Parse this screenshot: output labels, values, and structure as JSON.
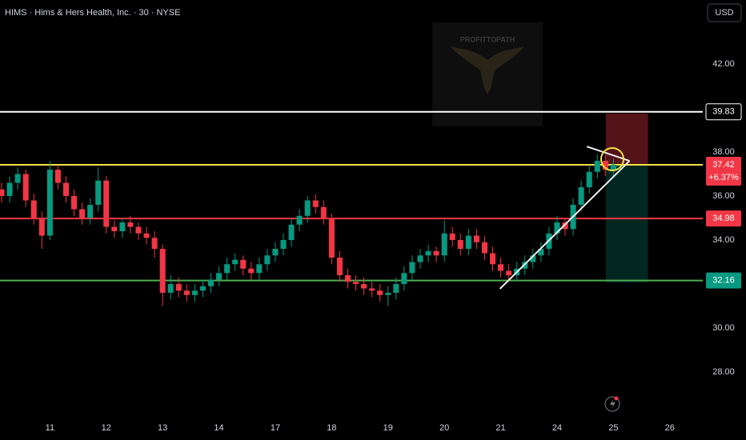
{
  "chart_data": {
    "type": "candlestick",
    "title": "HIMS · Hims & Hers Health, Inc. · 30 · NYSE",
    "currency": "USD",
    "watermark": "PROFITTOPATH",
    "up_color": "#089981",
    "down_color": "#f23645",
    "xlim": [
      -0.2,
      87.1
    ],
    "ylim": [
      25.82,
      44.91
    ],
    "xticks": [
      {
        "value": 6,
        "label": "11"
      },
      {
        "value": 13,
        "label": "12"
      },
      {
        "value": 20,
        "label": "13"
      },
      {
        "value": 27,
        "label": "14"
      },
      {
        "value": 34,
        "label": "17"
      },
      {
        "value": 41,
        "label": "18"
      },
      {
        "value": 48,
        "label": "19"
      },
      {
        "value": 55,
        "label": "20"
      },
      {
        "value": 62,
        "label": "21"
      },
      {
        "value": 69,
        "label": "24"
      },
      {
        "value": 76,
        "label": "25"
      },
      {
        "value": 83,
        "label": "26"
      }
    ],
    "yticks": [
      {
        "value": 42,
        "label": "42.00"
      },
      {
        "value": 38,
        "label": "38.00"
      },
      {
        "value": 36,
        "label": "36.00"
      },
      {
        "value": 34,
        "label": "34.00"
      },
      {
        "value": 30,
        "label": "30.00"
      },
      {
        "value": 28,
        "label": "28.00"
      }
    ],
    "x": [
      0,
      1,
      2,
      3,
      4,
      5,
      6,
      7,
      8,
      9,
      10,
      11,
      12,
      13,
      14,
      15,
      16,
      17,
      18,
      19,
      20,
      21,
      22,
      23,
      24,
      25,
      26,
      27,
      28,
      29,
      30,
      31,
      32,
      33,
      34,
      35,
      36,
      37,
      38,
      39,
      40,
      41,
      42,
      43,
      44,
      45,
      46,
      47,
      48,
      49,
      50,
      51,
      52,
      53,
      54,
      55,
      56,
      57,
      58,
      59,
      60,
      61,
      62,
      63,
      64,
      65,
      66,
      67,
      68,
      69,
      70,
      71,
      72,
      73,
      74,
      75,
      76
    ],
    "open": [
      36.3,
      36.0,
      36.6,
      37.0,
      35.8,
      35.0,
      34.2,
      37.2,
      36.6,
      36.0,
      35.4,
      35.0,
      35.6,
      36.7,
      34.6,
      34.4,
      34.8,
      34.6,
      34.3,
      34.1,
      33.6,
      31.6,
      32.0,
      31.7,
      31.5,
      31.7,
      31.9,
      32.2,
      32.5,
      32.9,
      33.1,
      32.7,
      32.5,
      32.9,
      33.3,
      33.6,
      34.0,
      34.7,
      35.1,
      35.8,
      35.5,
      35.0,
      33.2,
      32.4,
      32.1,
      32.0,
      31.8,
      31.7,
      31.5,
      31.6,
      32.0,
      32.5,
      33.0,
      33.3,
      33.5,
      33.3,
      34.3,
      34.0,
      33.6,
      34.2,
      33.9,
      33.4,
      32.9,
      32.6,
      32.4,
      32.7,
      33.0,
      33.3,
      33.6,
      34.3,
      34.8,
      34.5,
      35.6,
      36.4,
      37.1,
      37.6,
      37.2
    ],
    "high": [
      36.6,
      36.9,
      37.3,
      37.2,
      36.1,
      35.3,
      37.6,
      37.4,
      36.9,
      36.3,
      35.7,
      35.9,
      37.3,
      36.9,
      34.9,
      35.0,
      35.1,
      34.8,
      34.6,
      34.4,
      33.8,
      32.4,
      32.3,
      32.0,
      32.0,
      32.2,
      32.5,
      32.8,
      33.2,
      33.4,
      33.3,
      33.0,
      33.2,
      33.6,
      33.9,
      34.3,
      35.0,
      35.4,
      36.0,
      36.1,
      35.8,
      35.2,
      33.5,
      32.7,
      32.4,
      32.3,
      32.1,
      32.0,
      31.9,
      32.3,
      32.8,
      33.3,
      33.6,
      33.8,
      33.7,
      34.9,
      34.6,
      34.3,
      34.5,
      34.5,
      34.2,
      33.7,
      33.2,
      32.9,
      33.0,
      33.3,
      33.6,
      33.9,
      34.6,
      35.1,
      35.0,
      35.9,
      36.7,
      37.4,
      37.9,
      37.9,
      37.7
    ],
    "low": [
      35.7,
      35.7,
      36.3,
      35.5,
      34.7,
      33.6,
      34.0,
      36.3,
      35.7,
      35.1,
      34.7,
      34.7,
      35.3,
      34.3,
      34.1,
      34.1,
      34.3,
      34.0,
      33.8,
      33.2,
      31.0,
      31.3,
      31.4,
      31.2,
      31.2,
      31.4,
      31.6,
      31.9,
      32.2,
      32.6,
      32.4,
      32.2,
      32.2,
      32.6,
      33.0,
      33.3,
      33.7,
      34.4,
      34.8,
      35.2,
      34.7,
      32.9,
      32.1,
      31.8,
      31.7,
      31.5,
      31.4,
      31.2,
      31.0,
      31.3,
      31.7,
      32.2,
      32.7,
      33.0,
      33.0,
      33.0,
      33.7,
      33.3,
      33.3,
      33.6,
      33.1,
      32.6,
      32.3,
      32.1,
      32.1,
      32.4,
      32.7,
      33.0,
      33.3,
      34.0,
      34.2,
      34.2,
      35.3,
      36.1,
      36.8,
      36.9,
      36.9
    ],
    "close": [
      36.0,
      36.6,
      37.0,
      35.8,
      35.0,
      34.2,
      37.2,
      36.6,
      36.0,
      35.4,
      35.0,
      35.6,
      36.7,
      34.6,
      34.4,
      34.8,
      34.6,
      34.3,
      34.1,
      33.6,
      31.6,
      32.0,
      31.7,
      31.5,
      31.7,
      31.9,
      32.2,
      32.5,
      32.9,
      33.1,
      32.7,
      32.5,
      32.9,
      33.3,
      33.6,
      34.0,
      34.7,
      35.1,
      35.8,
      35.5,
      35.0,
      33.2,
      32.4,
      32.1,
      32.0,
      31.8,
      31.7,
      31.5,
      31.6,
      32.0,
      32.5,
      33.0,
      33.3,
      33.5,
      33.3,
      34.3,
      34.0,
      33.6,
      34.2,
      33.9,
      33.4,
      32.9,
      32.6,
      32.4,
      32.7,
      33.0,
      33.3,
      33.6,
      34.3,
      34.8,
      34.5,
      35.6,
      36.4,
      37.1,
      37.6,
      37.2,
      37.42
    ],
    "levels": [
      {
        "value": 39.83,
        "color": "#ffffff",
        "label_color": "#ffffff"
      },
      {
        "value": 37.42,
        "color": "#f5e342",
        "label_color": "#f23645"
      },
      {
        "value": 34.98,
        "color": "#f23645",
        "label_color": "#f23645"
      },
      {
        "value": 32.16,
        "color": "#4caf50",
        "label_color": "#089981"
      }
    ],
    "change_label": "+6.37%",
    "trendlines": [
      {
        "x": [
          61.9,
          78.0
        ],
        "y": [
          31.78,
          37.6
        ]
      },
      {
        "x": [
          72.7,
          78.0
        ],
        "y": [
          38.25,
          37.6
        ]
      }
    ],
    "position": {
      "x": [
        75.05,
        80.3
      ],
      "entry": 37.42,
      "stop": 39.75,
      "target": 32.07
    }
  }
}
